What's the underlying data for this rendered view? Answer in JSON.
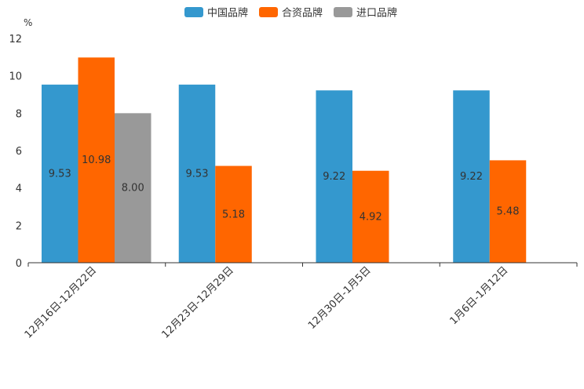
{
  "chart_data": {
    "type": "bar",
    "title": "",
    "xlabel": "",
    "ylabel": "",
    "y_unit": "%",
    "ylim": [
      0,
      12
    ],
    "yticks": [
      0,
      2,
      4,
      6,
      8,
      10,
      12
    ],
    "grid": false,
    "legend_position": "top-center",
    "categories": [
      "12月16日-12月22日",
      "12月23日-12月29日",
      "12月30日-1月5日",
      "1月6日-1月12日"
    ],
    "series": [
      {
        "name": "中国品牌",
        "color": "#3498CE",
        "values": [
          9.53,
          9.53,
          9.22,
          9.22
        ],
        "labels": [
          "9.53",
          "9.53",
          "9.22",
          "9.22"
        ]
      },
      {
        "name": "合资品牌",
        "color": "#FF6600",
        "values": [
          10.98,
          5.18,
          4.92,
          5.48
        ],
        "labels": [
          "10.98",
          "5.18",
          "4.92",
          "5.48"
        ]
      },
      {
        "name": "进口品牌",
        "color": "#999999",
        "values": [
          8.0,
          null,
          null,
          null
        ],
        "labels": [
          "8.00",
          null,
          null,
          null
        ]
      }
    ]
  }
}
